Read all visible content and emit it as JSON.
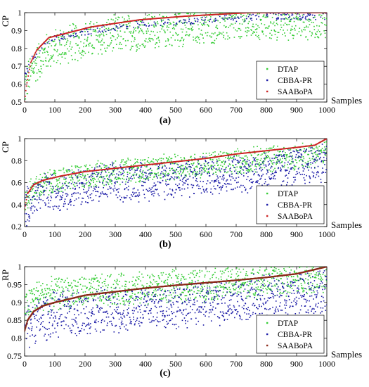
{
  "chart_data": [
    {
      "type": "scatter",
      "caption": "(a)",
      "ylabel": "CP",
      "xlabel": "Samples",
      "xlim": [
        0,
        1000
      ],
      "ylim": [
        0.5,
        1
      ],
      "xticks": [
        "0",
        "100",
        "200",
        "300",
        "400",
        "500",
        "600",
        "700",
        "800",
        "900",
        "1000"
      ],
      "yticks": [
        "0.5",
        "0.6",
        "0.7",
        "0.8",
        "0.9",
        "1"
      ],
      "legend_position": "bottom-right",
      "series": [
        {
          "name": "DTAP",
          "color": "#33cc33",
          "pattern": "scatter",
          "trend": [
            [
              0,
              0.58
            ],
            [
              30,
              0.7
            ],
            [
              80,
              0.79
            ],
            [
              150,
              0.83
            ],
            [
              250,
              0.86
            ],
            [
              400,
              0.9
            ],
            [
              600,
              0.93
            ],
            [
              800,
              0.95
            ],
            [
              1000,
              0.96
            ]
          ],
          "spread": 0.12
        },
        {
          "name": "CBBA-PR",
          "color": "#1a1aa6",
          "pattern": "upper-sparse",
          "trend": [
            [
              0,
              0.66
            ],
            [
              30,
              0.78
            ],
            [
              80,
              0.86
            ],
            [
              150,
              0.9
            ],
            [
              250,
              0.93
            ],
            [
              400,
              0.96
            ],
            [
              600,
              0.98
            ],
            [
              800,
              1.0
            ],
            [
              1000,
              1.0
            ]
          ],
          "spread": 0.04
        },
        {
          "name": "SAABoPA",
          "color": "#cc2222",
          "pattern": "staircase",
          "trend": [
            [
              0,
              0.5
            ],
            [
              5,
              0.58
            ],
            [
              20,
              0.72
            ],
            [
              40,
              0.79
            ],
            [
              80,
              0.86
            ],
            [
              150,
              0.89
            ],
            [
              220,
              0.92
            ],
            [
              300,
              0.94
            ],
            [
              380,
              0.96
            ],
            [
              530,
              0.98
            ],
            [
              740,
              1.0
            ],
            [
              1000,
              1.0
            ]
          ],
          "spread": 0.0
        }
      ]
    },
    {
      "type": "scatter",
      "caption": "(b)",
      "ylabel": "CP",
      "xlabel": "Samples",
      "xlim": [
        0,
        1000
      ],
      "ylim": [
        0.2,
        1
      ],
      "xticks": [
        "0",
        "100",
        "200",
        "300",
        "400",
        "500",
        "600",
        "700",
        "800",
        "900",
        "1000"
      ],
      "yticks": [
        "0.2",
        "0.4",
        "0.6",
        "0.8",
        "1"
      ],
      "legend_position": "bottom-right",
      "series": [
        {
          "name": "DTAP",
          "color": "#33cc33",
          "pattern": "scatter",
          "trend": [
            [
              0,
              0.4
            ],
            [
              20,
              0.52
            ],
            [
              60,
              0.58
            ],
            [
              150,
              0.64
            ],
            [
              300,
              0.7
            ],
            [
              500,
              0.74
            ],
            [
              700,
              0.79
            ],
            [
              900,
              0.84
            ],
            [
              1000,
              0.88
            ]
          ],
          "spread": 0.13
        },
        {
          "name": "CBBA-PR",
          "color": "#1a1aa6",
          "pattern": "scatter",
          "trend": [
            [
              0,
              0.34
            ],
            [
              20,
              0.44
            ],
            [
              60,
              0.5
            ],
            [
              150,
              0.55
            ],
            [
              300,
              0.6
            ],
            [
              500,
              0.64
            ],
            [
              700,
              0.68
            ],
            [
              900,
              0.74
            ],
            [
              1000,
              0.8
            ]
          ],
          "spread": 0.2
        },
        {
          "name": "SAABoPA",
          "color": "#cc2222",
          "pattern": "staircase",
          "trend": [
            [
              0,
              0.36
            ],
            [
              10,
              0.5
            ],
            [
              30,
              0.58
            ],
            [
              60,
              0.62
            ],
            [
              120,
              0.66
            ],
            [
              200,
              0.7
            ],
            [
              300,
              0.73
            ],
            [
              400,
              0.76
            ],
            [
              500,
              0.79
            ],
            [
              600,
              0.82
            ],
            [
              700,
              0.86
            ],
            [
              800,
              0.89
            ],
            [
              900,
              0.92
            ],
            [
              960,
              0.94
            ],
            [
              1000,
              1.0
            ]
          ],
          "spread": 0.0
        }
      ]
    },
    {
      "type": "scatter",
      "caption": "(c)",
      "ylabel": "RP",
      "xlabel": "Samples",
      "xlim": [
        0,
        1000
      ],
      "ylim": [
        0.75,
        1
      ],
      "xticks": [
        "0",
        "100",
        "200",
        "300",
        "400",
        "500",
        "600",
        "700",
        "800",
        "900",
        "1000"
      ],
      "yticks": [
        "0.75",
        "0.8",
        "0.85",
        "0.9",
        "0.95",
        "1"
      ],
      "legend_position": "bottom-right",
      "series": [
        {
          "name": "DTAP",
          "color": "#33cc33",
          "pattern": "scatter",
          "trend": [
            [
              0,
              0.88
            ],
            [
              30,
              0.915
            ],
            [
              100,
              0.925
            ],
            [
              300,
              0.935
            ],
            [
              500,
              0.945
            ],
            [
              700,
              0.955
            ],
            [
              900,
              0.965
            ],
            [
              1000,
              0.975
            ]
          ],
          "spread": 0.05
        },
        {
          "name": "CBBA-PR",
          "color": "#1a1aa6",
          "pattern": "scatter",
          "trend": [
            [
              0,
              0.82
            ],
            [
              30,
              0.85
            ],
            [
              100,
              0.865
            ],
            [
              300,
              0.88
            ],
            [
              500,
              0.89
            ],
            [
              700,
              0.905
            ],
            [
              900,
              0.92
            ],
            [
              1000,
              0.935
            ]
          ],
          "spread": 0.07
        },
        {
          "name": "SAABoPA",
          "color": "#8b2a1a",
          "pattern": "curve",
          "trend": [
            [
              0,
              0.82
            ],
            [
              10,
              0.85
            ],
            [
              30,
              0.875
            ],
            [
              60,
              0.89
            ],
            [
              100,
              0.9
            ],
            [
              200,
              0.92
            ],
            [
              300,
              0.93
            ],
            [
              400,
              0.94
            ],
            [
              500,
              0.948
            ],
            [
              600,
              0.955
            ],
            [
              700,
              0.962
            ],
            [
              800,
              0.97
            ],
            [
              900,
              0.98
            ],
            [
              950,
              0.99
            ],
            [
              1000,
              1.0
            ]
          ],
          "spread": 0.0
        }
      ]
    }
  ]
}
